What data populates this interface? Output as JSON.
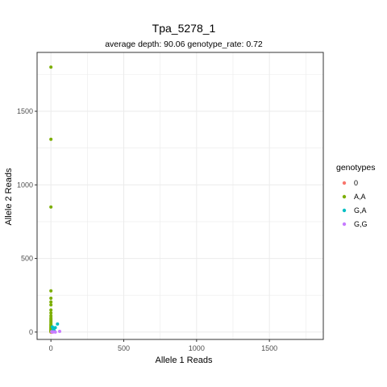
{
  "chart_data": {
    "type": "scatter",
    "title": "Tpa_5278_1",
    "subtitle": "average depth:  90.06  genotype_rate:  0.72",
    "xlabel": "Allele 1 Reads",
    "ylabel": "Allele 2 Reads",
    "xlim": [
      -95,
      1870
    ],
    "ylim": [
      -50,
      1900
    ],
    "x_ticks": [
      0,
      500,
      1000,
      1500
    ],
    "y_ticks": [
      0,
      500,
      1000,
      1500
    ],
    "x_gridlines": [
      0,
      250,
      500,
      750,
      1000,
      1250,
      1500,
      1750
    ],
    "y_gridlines": [
      0,
      250,
      500,
      750,
      1000,
      1250,
      1500,
      1750
    ],
    "grid": true,
    "legend": {
      "title": "genotypes",
      "position": "right",
      "entries": [
        {
          "label": "0",
          "color": "#F8766D"
        },
        {
          "label": "A,A",
          "color": "#7CAE00"
        },
        {
          "label": "G,A",
          "color": "#00BFC4"
        },
        {
          "label": "G,G",
          "color": "#C77CFF"
        }
      ]
    },
    "series": [
      {
        "name": "0",
        "color": "#F8766D",
        "points": [
          [
            0,
            0
          ],
          [
            2,
            3
          ],
          [
            5,
            1
          ],
          [
            8,
            4
          ],
          [
            1,
            6
          ],
          [
            3,
            2
          ],
          [
            10,
            0
          ],
          [
            0,
            9
          ],
          [
            4,
            0
          ]
        ]
      },
      {
        "name": "A,A",
        "color": "#7CAE00",
        "points": [
          [
            0,
            1800
          ],
          [
            0,
            1310
          ],
          [
            0,
            850
          ],
          [
            0,
            280
          ],
          [
            0,
            230
          ],
          [
            0,
            205
          ],
          [
            0,
            185
          ],
          [
            0,
            150
          ],
          [
            0,
            130
          ],
          [
            0,
            110
          ],
          [
            0,
            95
          ],
          [
            0,
            85
          ],
          [
            0,
            75
          ],
          [
            0,
            65
          ],
          [
            0,
            55
          ],
          [
            0,
            48
          ],
          [
            0,
            40
          ],
          [
            0,
            33
          ],
          [
            0,
            27
          ],
          [
            0,
            21
          ],
          [
            0,
            16
          ],
          [
            0,
            11
          ],
          [
            0,
            7
          ],
          [
            0,
            4
          ],
          [
            1,
            2
          ]
        ]
      },
      {
        "name": "G,A",
        "color": "#00BFC4",
        "points": [
          [
            30,
            30
          ],
          [
            45,
            55
          ],
          [
            15,
            20
          ],
          [
            22,
            10
          ],
          [
            10,
            35
          ]
        ]
      },
      {
        "name": "G,G",
        "color": "#C77CFF",
        "points": [
          [
            60,
            5
          ],
          [
            20,
            2
          ],
          [
            12,
            0
          ],
          [
            5,
            3
          ],
          [
            30,
            0
          ]
        ]
      }
    ]
  }
}
